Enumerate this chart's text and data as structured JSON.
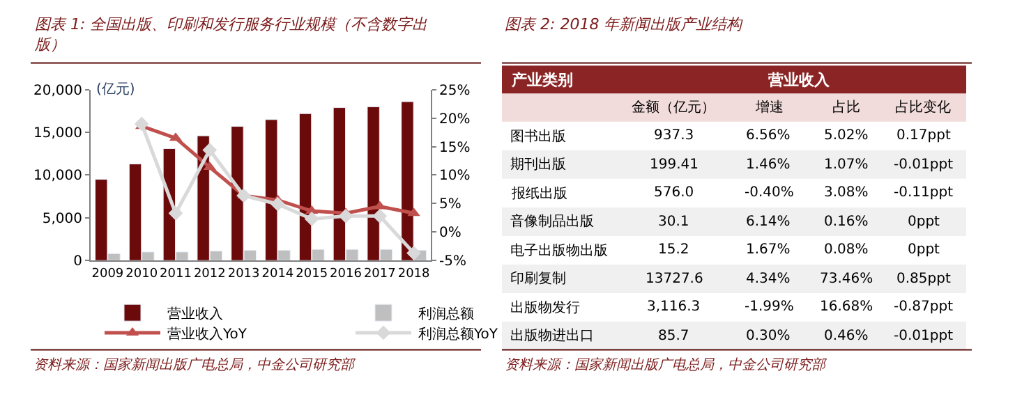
{
  "chart_data": [
    {
      "type": "bar",
      "title": "图表 1: 全国出版、印刷和发行服务行业规模（不含数字出版）",
      "ylabel": "(亿元)",
      "categories": [
        "2009",
        "2010",
        "2011",
        "2012",
        "2013",
        "2014",
        "2015",
        "2016",
        "2017",
        "2018"
      ],
      "series": [
        {
          "name": "营业收入",
          "color": "#6b0a0a",
          "values": [
            9500,
            11300,
            13100,
            14600,
            15700,
            16500,
            17200,
            17900,
            18000,
            18600
          ]
        },
        {
          "name": "利润总额",
          "color": "#bfbfbf",
          "values": [
            800,
            1000,
            1000,
            1100,
            1200,
            1200,
            1300,
            1300,
            1300,
            1200
          ]
        },
        {
          "name": "营业收入YoY",
          "type": "line",
          "axis": "y2",
          "marker": "triangle",
          "color": "#c0504d",
          "values": [
            null,
            18.6,
            16.5,
            11.4,
            6.4,
            5.6,
            3.7,
            3.3,
            4.5,
            3.3
          ]
        },
        {
          "name": "利润总额YoY",
          "type": "line",
          "axis": "y2",
          "marker": "diamond",
          "color": "#d9d9d9",
          "values": [
            null,
            19.0,
            3.3,
            14.4,
            6.4,
            4.9,
            2.3,
            2.8,
            2.8,
            -3.7
          ]
        }
      ],
      "ylim": [
        0,
        20000
      ],
      "yticks": [
        {
          "value": 0,
          "label": "0"
        },
        {
          "value": 5000,
          "label": "5,000"
        },
        {
          "value": 10000,
          "label": "10,000"
        },
        {
          "value": 15000,
          "label": "15,000"
        },
        {
          "value": 20000,
          "label": "20,000"
        }
      ],
      "y2lim": [
        -5,
        25
      ],
      "y2ticks": [
        {
          "value": -5,
          "label": "-5%"
        },
        {
          "value": 0,
          "label": "0%"
        },
        {
          "value": 5,
          "label": "5%"
        },
        {
          "value": 10,
          "label": "10%"
        },
        {
          "value": 15,
          "label": "15%"
        },
        {
          "value": 20,
          "label": "20%"
        },
        {
          "value": 25,
          "label": "25%"
        }
      ],
      "legend": "bottom",
      "line_style": "solid",
      "annotations": [
        "资料来源：国家新闻出版广电总局，中金公司研究部"
      ]
    },
    {
      "type": "other",
      "title": "图表 2: 2018 年新闻出版产业结构",
      "xlabel": "营业收入",
      "ylabel": "产业类别",
      "categories": [
        "图书出版",
        "期刊出版",
        "报纸出版",
        "音像制品出版",
        "电子出版物出版",
        "印刷复制",
        "出版物发行",
        "出版物进出口"
      ],
      "series": [
        {
          "name": "金额（亿元）",
          "values": [
            937.3,
            199.41,
            576.0,
            30.1,
            15.2,
            13727.6,
            3116.3,
            85.7
          ],
          "value_labels": [
            "937.3",
            "199.41",
            "576.0",
            "30.1",
            "15.2",
            "13727.6",
            "3,116.3",
            "85.7"
          ]
        },
        {
          "name": "增速",
          "values": [
            6.56,
            1.46,
            -0.4,
            6.14,
            1.67,
            4.34,
            -1.99,
            0.3
          ],
          "value_labels": [
            "6.56%",
            "1.46%",
            "-0.40%",
            "6.14%",
            "1.67%",
            "4.34%",
            "-1.99%",
            "0.30%"
          ]
        },
        {
          "name": "占比",
          "values": [
            5.02,
            1.07,
            3.08,
            0.16,
            0.08,
            73.46,
            16.68,
            0.46
          ],
          "value_labels": [
            "5.02%",
            "1.07%",
            "3.08%",
            "0.16%",
            "0.08%",
            "73.46%",
            "16.68%",
            "0.46%"
          ]
        },
        {
          "name": "占比变化",
          "values": [
            0.17,
            -0.01,
            -0.11,
            0,
            0,
            0.85,
            -0.87,
            -0.01
          ],
          "value_labels": [
            "0.17ppt",
            "-0.01ppt",
            "-0.11ppt",
            "0ppt",
            "0ppt",
            "0.85ppt",
            "-0.87ppt",
            "-0.01ppt"
          ]
        }
      ],
      "annotations": [
        "资料来源：国家新闻出版广电总局，中金公司研究部"
      ]
    }
  ]
}
